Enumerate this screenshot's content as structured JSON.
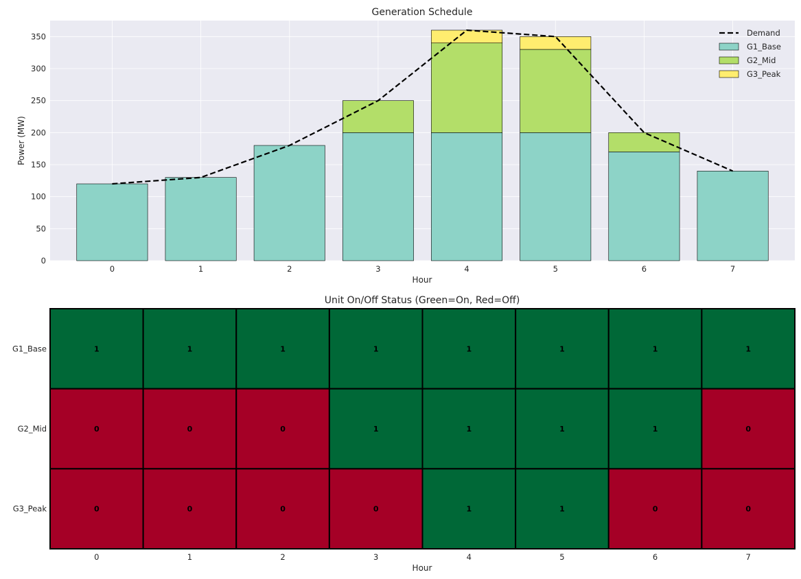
{
  "chart_data": [
    {
      "type": "bar",
      "stacked": true,
      "title": "Generation Schedule",
      "xlabel": "Hour",
      "ylabel": "Power (MW)",
      "categories": [
        "0",
        "1",
        "2",
        "3",
        "4",
        "5",
        "6",
        "7"
      ],
      "ylim": [
        0,
        375
      ],
      "yticks": [
        0,
        50,
        100,
        150,
        200,
        250,
        300,
        350
      ],
      "grid": true,
      "legend_position": "top-right",
      "series": [
        {
          "name": "G1_Base",
          "color": "#8dd3c7",
          "values": [
            120,
            130,
            180,
            200,
            200,
            200,
            170,
            140
          ]
        },
        {
          "name": "G2_Mid",
          "color": "#b3de69",
          "values": [
            0,
            0,
            0,
            50,
            140,
            130,
            30,
            0
          ]
        },
        {
          "name": "G3_Peak",
          "color": "#ffed6f",
          "values": [
            0,
            0,
            0,
            0,
            20,
            20,
            0,
            0
          ]
        }
      ],
      "line_series": {
        "name": "Demand",
        "style": "dashed",
        "color": "#000000",
        "values": [
          120,
          130,
          180,
          250,
          360,
          350,
          200,
          140
        ]
      }
    },
    {
      "type": "heatmap",
      "title": "Unit On/Off Status (Green=On, Red=Off)",
      "xlabel": "Hour",
      "columns": [
        "0",
        "1",
        "2",
        "3",
        "4",
        "5",
        "6",
        "7"
      ],
      "rows": [
        "G1_Base",
        "G2_Mid",
        "G3_Peak"
      ],
      "values": [
        [
          1,
          1,
          1,
          1,
          1,
          1,
          1,
          1
        ],
        [
          0,
          0,
          0,
          1,
          1,
          1,
          1,
          0
        ],
        [
          0,
          0,
          0,
          0,
          1,
          1,
          0,
          0
        ]
      ],
      "colors": {
        "on": "#006837",
        "off": "#a50026"
      }
    }
  ]
}
